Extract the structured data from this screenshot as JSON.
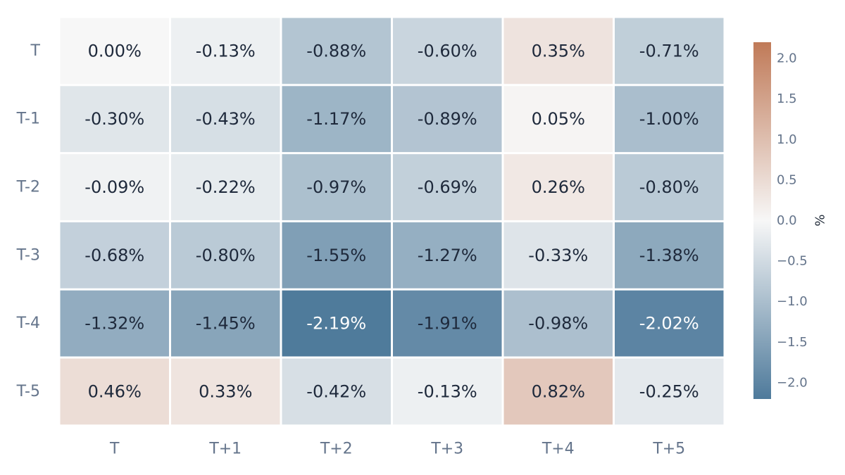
{
  "chart_data": {
    "type": "heatmap",
    "title": "",
    "xlabel": "",
    "ylabel": "",
    "columns": [
      "T",
      "T+1",
      "T+2",
      "T+3",
      "T+4",
      "T+5"
    ],
    "rows": [
      "T",
      "T-1",
      "T-2",
      "T-3",
      "T-4",
      "T-5"
    ],
    "values": [
      [
        0.0,
        -0.13,
        -0.88,
        -0.6,
        0.35,
        -0.71
      ],
      [
        -0.3,
        -0.43,
        -1.17,
        -0.89,
        0.05,
        -1.0
      ],
      [
        -0.09,
        -0.22,
        -0.97,
        -0.69,
        0.26,
        -0.8
      ],
      [
        -0.68,
        -0.8,
        -1.55,
        -1.27,
        -0.33,
        -1.38
      ],
      [
        -1.32,
        -1.45,
        -2.19,
        -1.91,
        -0.98,
        -2.02
      ],
      [
        0.46,
        0.33,
        -0.42,
        -0.13,
        0.82,
        -0.25
      ]
    ],
    "cell_labels": [
      [
        "0.00%",
        "-0.13%",
        "-0.88%",
        "-0.60%",
        "0.35%",
        "-0.71%"
      ],
      [
        "-0.30%",
        "-0.43%",
        "-1.17%",
        "-0.89%",
        "0.05%",
        "-1.00%"
      ],
      [
        "-0.09%",
        "-0.22%",
        "-0.97%",
        "-0.69%",
        "0.26%",
        "-0.80%"
      ],
      [
        "-0.68%",
        "-0.80%",
        "-1.55%",
        "-1.27%",
        "-0.33%",
        "-1.38%"
      ],
      [
        "-1.32%",
        "-1.45%",
        "-2.19%",
        "-1.91%",
        "-0.98%",
        "-2.02%"
      ],
      [
        "0.46%",
        "0.33%",
        "-0.42%",
        "-0.13%",
        "0.82%",
        "-0.25%"
      ]
    ],
    "colorbar": {
      "title": "%",
      "min": -2.2,
      "max": 2.2,
      "ticks": [
        2.0,
        1.5,
        1.0,
        0.5,
        0.0,
        -0.5,
        -1.0,
        -1.5,
        -2.0
      ],
      "tick_labels": [
        "2.0",
        "1.5",
        "1.0",
        "0.5",
        "0.0",
        "−0.5",
        "−1.0",
        "−1.5",
        "−2.0"
      ],
      "low_color": "#4e7a9b",
      "mid_color": "#f7f7f7",
      "high_color": "#c07a58"
    },
    "text_colors": {
      "dark": "#1e293b",
      "light": "#ffffff"
    },
    "tick_color": "#64748b"
  }
}
